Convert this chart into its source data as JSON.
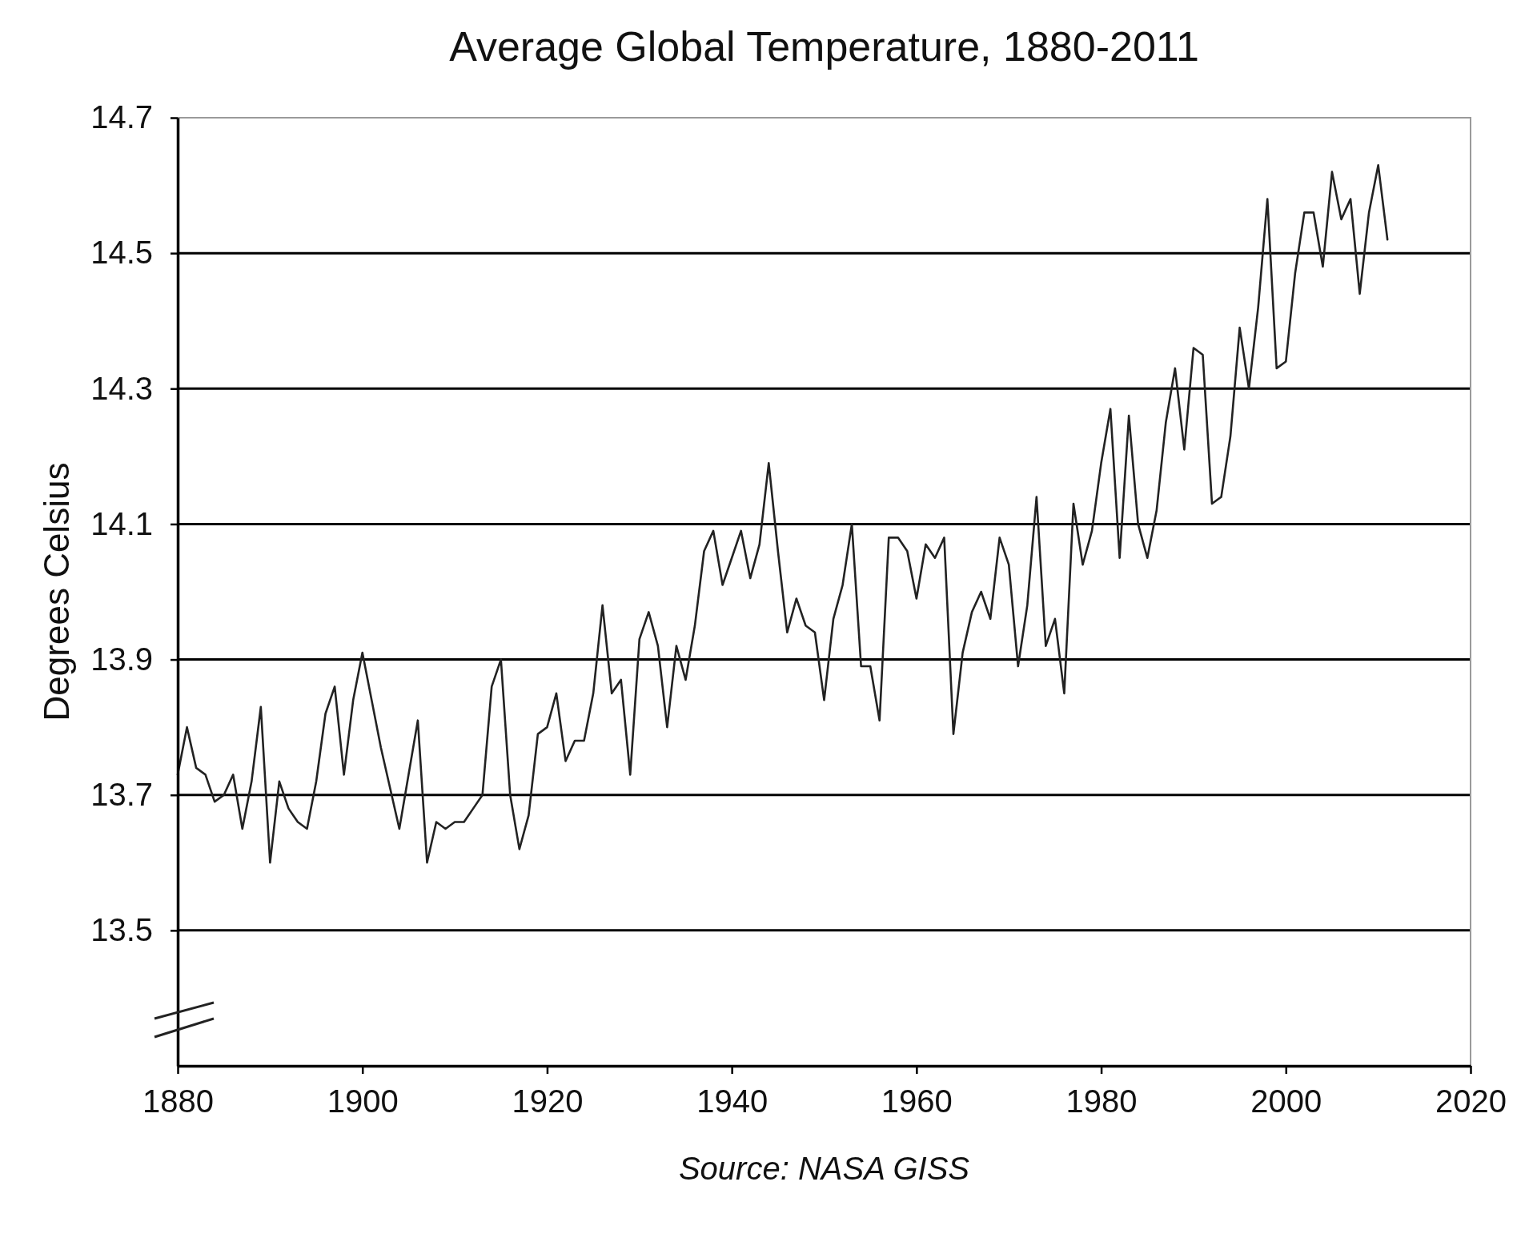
{
  "chart_data": {
    "type": "line",
    "title": "Average Global Temperature, 1880-2011",
    "ylabel": "Degrees Celsius",
    "annotations": [
      "Source: NASA GISS"
    ],
    "x": [
      1880,
      1881,
      1882,
      1883,
      1884,
      1885,
      1886,
      1887,
      1888,
      1889,
      1890,
      1891,
      1892,
      1893,
      1894,
      1895,
      1896,
      1897,
      1898,
      1899,
      1900,
      1901,
      1902,
      1903,
      1904,
      1905,
      1906,
      1907,
      1908,
      1909,
      1910,
      1911,
      1912,
      1913,
      1914,
      1915,
      1916,
      1917,
      1918,
      1919,
      1920,
      1921,
      1922,
      1923,
      1924,
      1925,
      1926,
      1927,
      1928,
      1929,
      1930,
      1931,
      1932,
      1933,
      1934,
      1935,
      1936,
      1937,
      1938,
      1939,
      1940,
      1941,
      1942,
      1943,
      1944,
      1945,
      1946,
      1947,
      1948,
      1949,
      1950,
      1951,
      1952,
      1953,
      1954,
      1955,
      1956,
      1957,
      1958,
      1959,
      1960,
      1961,
      1962,
      1963,
      1964,
      1965,
      1966,
      1967,
      1968,
      1969,
      1970,
      1971,
      1972,
      1973,
      1974,
      1975,
      1976,
      1977,
      1978,
      1979,
      1980,
      1981,
      1982,
      1983,
      1984,
      1985,
      1986,
      1987,
      1988,
      1989,
      1990,
      1991,
      1992,
      1993,
      1994,
      1995,
      1996,
      1997,
      1998,
      1999,
      2000,
      2001,
      2002,
      2003,
      2004,
      2005,
      2006,
      2007,
      2008,
      2009,
      2010,
      2011
    ],
    "series": [
      {
        "color": "#222222",
        "values": [
          13.73,
          13.8,
          13.74,
          13.73,
          13.69,
          13.7,
          13.73,
          13.65,
          13.72,
          13.83,
          13.6,
          13.72,
          13.68,
          13.66,
          13.65,
          13.72,
          13.82,
          13.86,
          13.73,
          13.84,
          13.91,
          13.84,
          13.77,
          13.71,
          13.65,
          13.73,
          13.81,
          13.6,
          13.66,
          13.65,
          13.66,
          13.66,
          13.68,
          13.7,
          13.86,
          13.9,
          13.7,
          13.62,
          13.67,
          13.79,
          13.8,
          13.85,
          13.75,
          13.78,
          13.78,
          13.85,
          13.98,
          13.85,
          13.87,
          13.73,
          13.93,
          13.97,
          13.92,
          13.8,
          13.92,
          13.87,
          13.95,
          14.06,
          14.09,
          14.01,
          14.05,
          14.09,
          14.02,
          14.07,
          14.19,
          14.06,
          13.94,
          13.99,
          13.95,
          13.94,
          13.84,
          13.96,
          14.01,
          14.1,
          13.89,
          13.89,
          13.81,
          14.08,
          14.08,
          14.06,
          13.99,
          14.07,
          14.05,
          14.08,
          13.79,
          13.91,
          13.97,
          14.0,
          13.96,
          14.08,
          14.04,
          13.89,
          13.98,
          14.14,
          13.92,
          13.96,
          13.85,
          14.13,
          14.04,
          14.09,
          14.19,
          14.27,
          14.05,
          14.26,
          14.1,
          14.05,
          14.12,
          14.25,
          14.33,
          14.21,
          14.36,
          14.35,
          14.13,
          14.14,
          14.23,
          14.39,
          14.3,
          14.42,
          14.58,
          14.33,
          14.34,
          14.47,
          14.56,
          14.56,
          14.48,
          14.62,
          14.55,
          14.58,
          14.44,
          14.56,
          14.63,
          14.52
        ]
      }
    ],
    "xlim": [
      1880,
      2020
    ],
    "xticks": [
      1880,
      1900,
      1920,
      1940,
      1960,
      1980,
      2000,
      2020
    ],
    "ylim": [
      13.3,
      14.7
    ],
    "yticks": [
      13.5,
      13.7,
      13.9,
      14.1,
      14.3,
      14.5,
      14.7
    ],
    "grid": "y"
  }
}
